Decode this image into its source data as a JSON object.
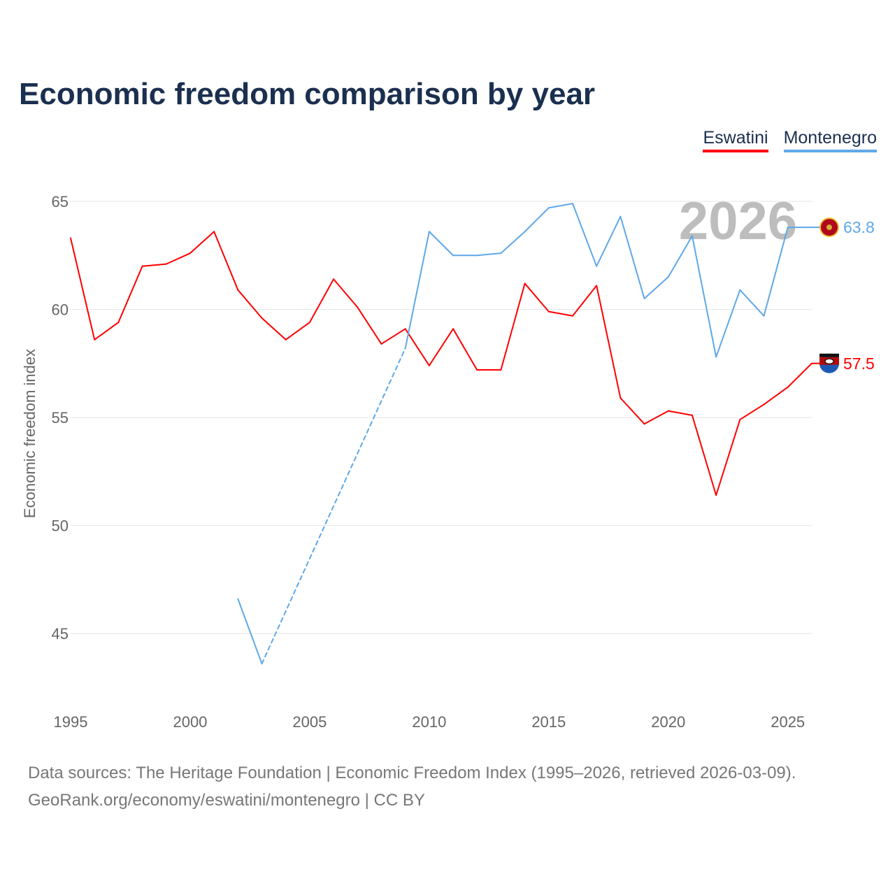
{
  "chart_data": {
    "type": "line",
    "title": "Economic freedom comparison by year",
    "xlabel": "",
    "ylabel": "Economic freedom index",
    "xlim": [
      1995,
      2026
    ],
    "ylim": [
      42,
      67
    ],
    "yticks": [
      45,
      50,
      55,
      60,
      65
    ],
    "xticks": [
      1995,
      2000,
      2005,
      2010,
      2015,
      2020,
      2025
    ],
    "grid": true,
    "legend_position": "top-right",
    "year_watermark": "2026",
    "x": [
      1995,
      1996,
      1997,
      1998,
      1999,
      2000,
      2001,
      2002,
      2003,
      2004,
      2005,
      2006,
      2007,
      2008,
      2009,
      2010,
      2011,
      2012,
      2013,
      2014,
      2015,
      2016,
      2017,
      2018,
      2019,
      2020,
      2021,
      2022,
      2023,
      2024,
      2025,
      2026
    ],
    "series": [
      {
        "name": "Eswatini",
        "color": "#ff0000",
        "end_label": "57.5",
        "values": [
          63.3,
          58.6,
          59.4,
          62.0,
          62.1,
          62.6,
          63.6,
          60.9,
          59.6,
          58.6,
          59.4,
          61.4,
          60.1,
          58.4,
          59.1,
          57.4,
          59.1,
          57.2,
          57.2,
          61.2,
          59.9,
          59.7,
          61.1,
          55.9,
          54.7,
          55.3,
          55.1,
          51.4,
          54.9,
          55.6,
          56.4,
          57.5
        ]
      },
      {
        "name": "Montenegro",
        "color": "#5fa8e8",
        "end_label": "63.8",
        "values": [
          null,
          null,
          null,
          null,
          null,
          null,
          null,
          46.6,
          43.6,
          null,
          null,
          null,
          null,
          null,
          58.2,
          63.6,
          62.5,
          62.5,
          62.6,
          63.6,
          64.7,
          64.9,
          62.0,
          64.3,
          60.5,
          61.5,
          63.4,
          57.8,
          60.9,
          59.7,
          63.8,
          63.8
        ]
      }
    ]
  },
  "footer": {
    "line1": "Data sources: The Heritage Foundation | Economic Freedom Index (1995–2026, retrieved 2026-03-09).",
    "line2": "GeoRank.org/economy/eswatini/montenegro | CC BY"
  }
}
